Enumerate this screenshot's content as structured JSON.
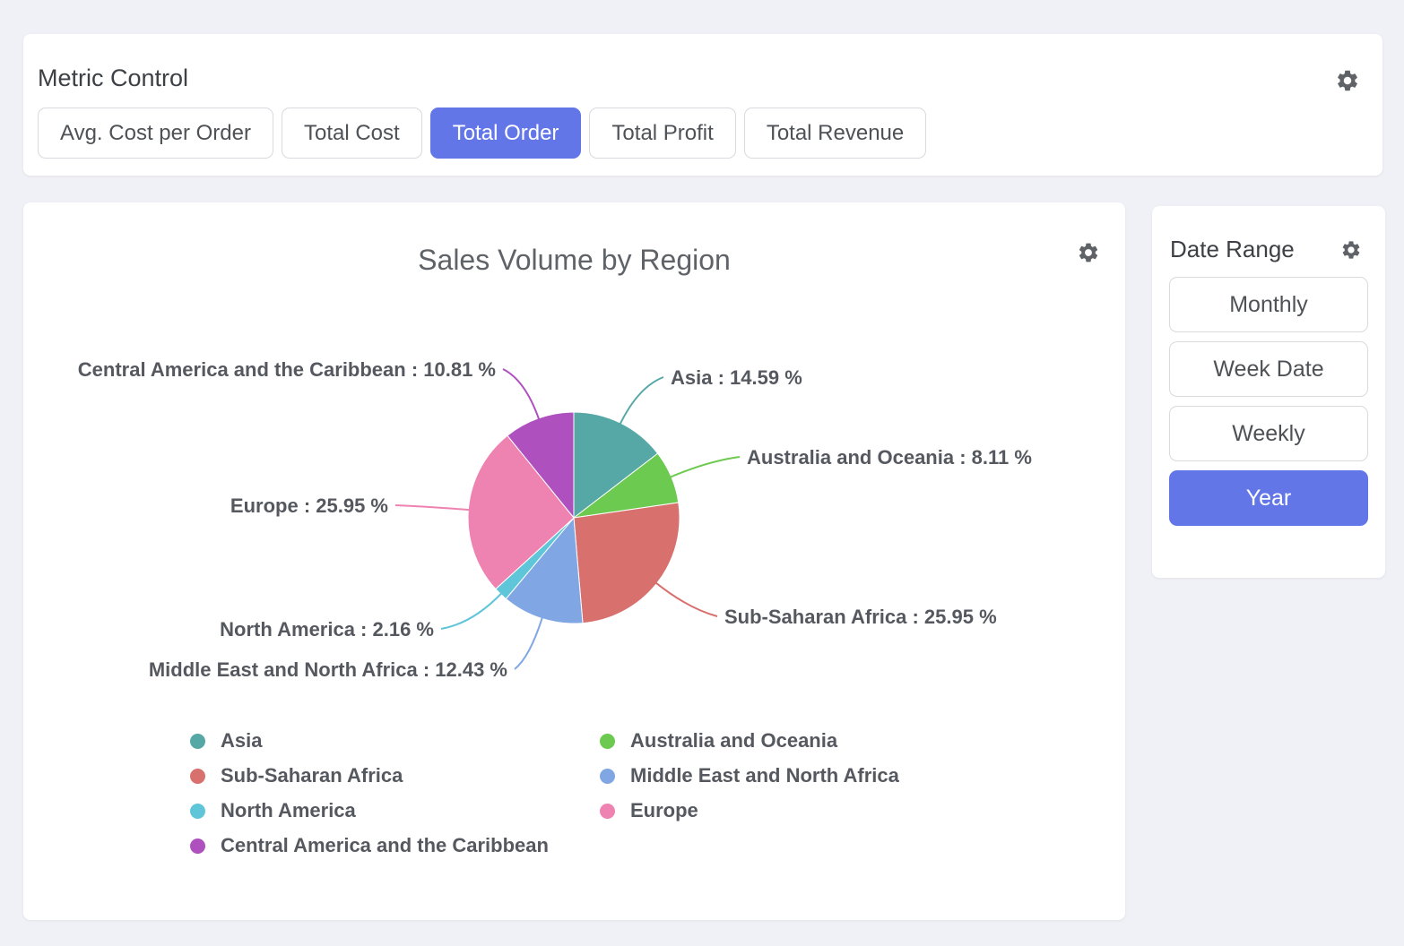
{
  "metric_control": {
    "title": "Metric Control",
    "options": [
      {
        "label": "Avg. Cost per Order",
        "selected": false
      },
      {
        "label": "Total Cost",
        "selected": false
      },
      {
        "label": "Total Order",
        "selected": true
      },
      {
        "label": "Total Profit",
        "selected": false
      },
      {
        "label": "Total Revenue",
        "selected": false
      }
    ]
  },
  "date_range": {
    "title": "Date Range",
    "options": [
      {
        "label": "Monthly",
        "selected": false
      },
      {
        "label": "Week Date",
        "selected": false
      },
      {
        "label": "Weekly",
        "selected": false
      },
      {
        "label": "Year",
        "selected": true
      }
    ]
  },
  "chart_data": {
    "type": "pie",
    "title": "Sales Volume by Region",
    "value_unit": "%",
    "legend_position": "bottom",
    "slices": [
      {
        "name": "Asia",
        "value": 14.59,
        "color": "#55a8a6"
      },
      {
        "name": "Australia and Oceania",
        "value": 8.11,
        "color": "#6dca50"
      },
      {
        "name": "Sub-Saharan Africa",
        "value": 25.95,
        "color": "#d8706d"
      },
      {
        "name": "Middle East and North Africa",
        "value": 12.43,
        "color": "#80a7e3"
      },
      {
        "name": "North America",
        "value": 2.16,
        "color": "#5fc5d8"
      },
      {
        "name": "Europe",
        "value": 25.95,
        "color": "#ee82b1"
      },
      {
        "name": "Central America and the Caribbean",
        "value": 10.81,
        "color": "#af50bf"
      }
    ]
  },
  "colors": {
    "accent": "#6276e8",
    "page_background": "#f0f1f6",
    "card_background": "#ffffff",
    "title_text": "#5f6368",
    "label_text": "#55595f",
    "icon": "#5f6368"
  }
}
